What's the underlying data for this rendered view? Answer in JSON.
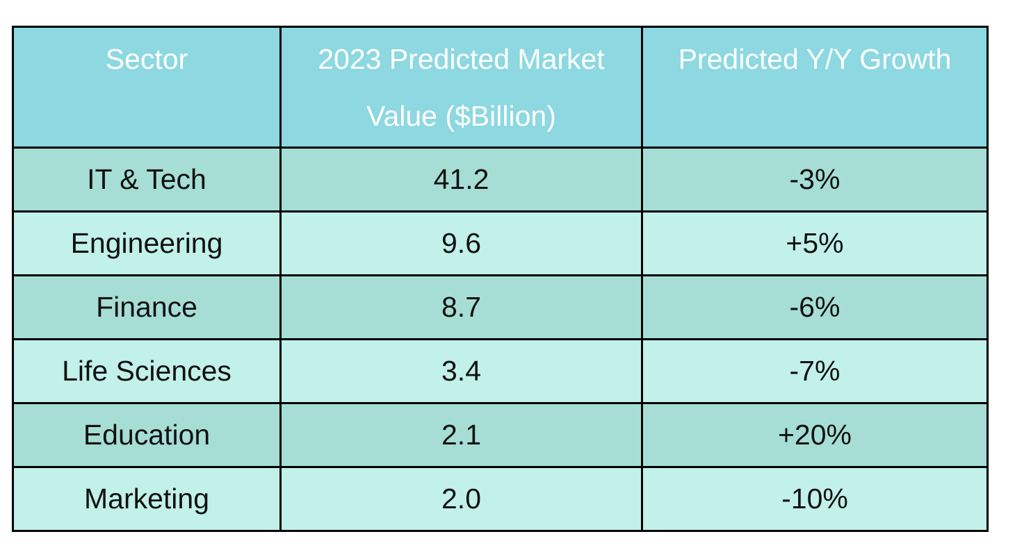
{
  "table": {
    "columns": [
      "Sector",
      "2023 Predicted Market Value ($Billion)",
      "Predicted Y/Y Growth"
    ],
    "rows": [
      {
        "sector": "IT & Tech",
        "market_value": "41.2",
        "growth": "-3%"
      },
      {
        "sector": "Engineering",
        "market_value": "9.6",
        "growth": "+5%"
      },
      {
        "sector": "Finance",
        "market_value": "8.7",
        "growth": "-6%"
      },
      {
        "sector": "Life Sciences",
        "market_value": "3.4",
        "growth": "-7%"
      },
      {
        "sector": "Education",
        "market_value": "2.1",
        "growth": "+20%"
      },
      {
        "sector": "Marketing",
        "market_value": "2.0",
        "growth": "-10%"
      }
    ]
  },
  "colors": {
    "page_bg": "#ffffff",
    "header_bg": "#8dd8e1",
    "row_dark_bg": "#a6ded5",
    "row_light_bg": "#c1f1e9",
    "border": "#000000",
    "header_text": "#ffffff",
    "body_text": "#111111"
  },
  "chart_data": {
    "type": "table",
    "title": "",
    "columns": [
      "Sector",
      "2023 Predicted Market Value ($Billion)",
      "Predicted Y/Y Growth"
    ],
    "categories": [
      "IT & Tech",
      "Engineering",
      "Finance",
      "Life Sciences",
      "Education",
      "Marketing"
    ],
    "series": [
      {
        "name": "2023 Predicted Market Value ($Billion)",
        "values": [
          41.2,
          9.6,
          8.7,
          3.4,
          2.1,
          2.0
        ]
      },
      {
        "name": "Predicted Y/Y Growth (%)",
        "values": [
          -3,
          5,
          -6,
          -7,
          20,
          -10
        ]
      }
    ],
    "growth_labels": [
      "-3%",
      "+5%",
      "-6%",
      "-7%",
      "+20%",
      "-10%"
    ]
  }
}
